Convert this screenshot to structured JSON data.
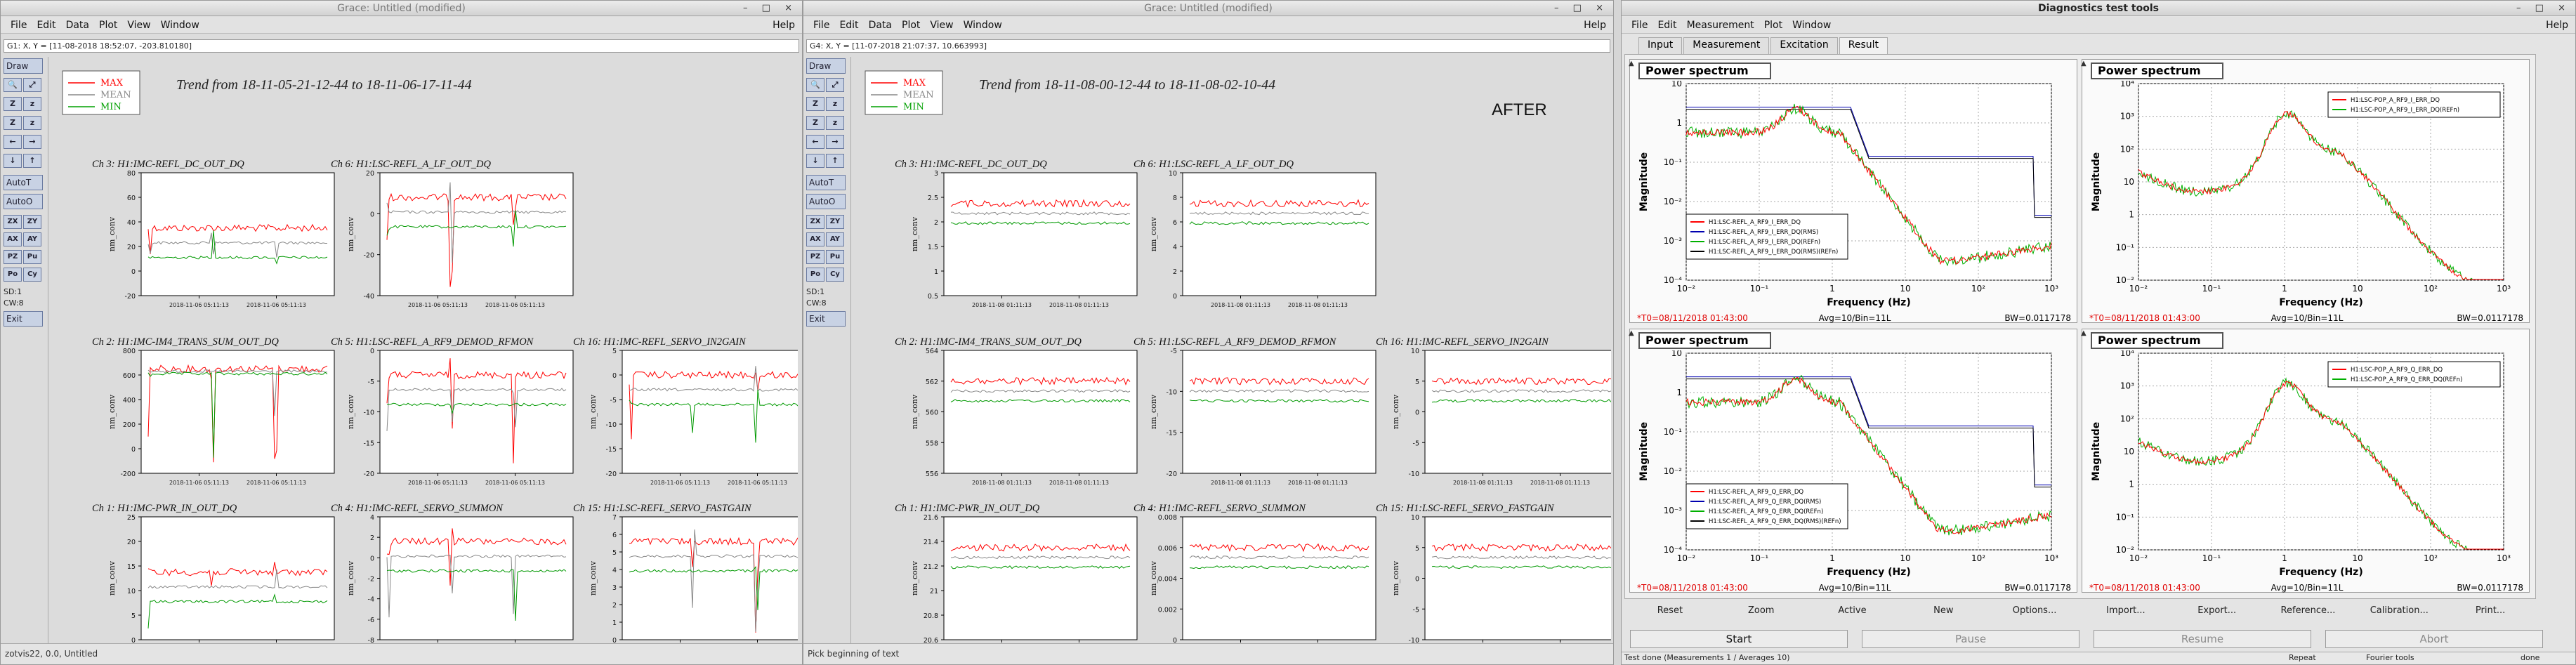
{
  "windows": [
    {
      "id": "grace1",
      "title": "Grace: Untitled (modified)",
      "menus": [
        "File",
        "Edit",
        "Data",
        "Plot",
        "View",
        "Window"
      ],
      "help": "Help",
      "locator": "G1: X, Y = [11-08-2018 18:52:07, -203.810180]",
      "trend_title": "Trend from 18-11-05-21-12-44 to 18-11-06-17-11-44",
      "legend": [
        "MAX",
        "MEAN",
        "MIN"
      ],
      "status": "zotvis22, 0.0, Untitled",
      "annotation": "",
      "xtick": "2018-11-06 05:11:13",
      "graphs": [
        {
          "title": "Ch 3: H1:IMC-REFL_DC_OUT_DQ",
          "ylabel": "nm_conv",
          "yticks": [
            "80",
            "60",
            "40",
            "20",
            "0",
            "-20"
          ]
        },
        {
          "title": "Ch 6: H1:LSC-REFL_A_LF_OUT_DQ",
          "ylabel": "nm_conv",
          "yticks": [
            "20",
            "0",
            "-20",
            "-40"
          ]
        },
        {
          "title": "",
          "ylabel": "",
          "yticks": []
        },
        {
          "title": "Ch 2: H1:IMC-IM4_TRANS_SUM_OUT_DQ",
          "ylabel": "nm_conv",
          "yticks": [
            "800",
            "600",
            "400",
            "200",
            "0",
            "-200"
          ]
        },
        {
          "title": "Ch 5: H1:LSC-REFL_A_RF9_DEMOD_RFMON",
          "ylabel": "nm_conv",
          "yticks": [
            "0",
            "-5",
            "-10",
            "-15",
            "-20"
          ]
        },
        {
          "title": "Ch 16: H1:IMC-REFL_SERVO_IN2GAIN",
          "ylabel": "nm_conv",
          "yticks": [
            "5",
            "0",
            "-5",
            "-10",
            "-15",
            "-20"
          ]
        },
        {
          "title": "Ch 1: H1:IMC-PWR_IN_OUT_DQ",
          "ylabel": "nm_conv",
          "yticks": [
            "25",
            "20",
            "15",
            "10",
            "5",
            "0"
          ]
        },
        {
          "title": "Ch 4: H1:IMC-REFL_SERVO_SUMMON",
          "ylabel": "nm_conv",
          "yticks": [
            "4",
            "2",
            "0",
            "-2",
            "-4",
            "-6",
            "-8"
          ]
        },
        {
          "title": "Ch 15: H1:LSC-REFL_SERVO_FASTGAIN",
          "ylabel": "nm_conv",
          "yticks": [
            "7",
            "6",
            "5",
            "4",
            "3",
            "2",
            "1",
            "0"
          ]
        }
      ]
    },
    {
      "id": "grace2",
      "title": "Grace: Untitled (modified)",
      "menus": [
        "File",
        "Edit",
        "Data",
        "Plot",
        "View",
        "Window"
      ],
      "help": "Help",
      "locator": "G4: X, Y = [11-07-2018 21:07:37, 10.663993]",
      "trend_title": "Trend from 18-11-08-00-12-44 to 18-11-08-02-10-44",
      "legend": [
        "MAX",
        "MEAN",
        "MIN"
      ],
      "status": "Pick beginning of text",
      "annotation": "AFTER",
      "xtick": "2018-11-08 01:11:13",
      "graphs": [
        {
          "title": "Ch 3: H1:IMC-REFL_DC_OUT_DQ",
          "ylabel": "nm_conv",
          "yticks": [
            "3",
            "2.5",
            "2",
            "1.5",
            "1",
            "0.5"
          ]
        },
        {
          "title": "Ch 6: H1:LSC-REFL_A_LF_OUT_DQ",
          "ylabel": "nm_conv",
          "yticks": [
            "10",
            "8",
            "6",
            "4",
            "2",
            "0"
          ]
        },
        {
          "title": "",
          "ylabel": "",
          "yticks": []
        },
        {
          "title": "Ch 2: H1:IMC-IM4_TRANS_SUM_OUT_DQ",
          "ylabel": "nm_conv",
          "yticks": [
            "564",
            "562",
            "560",
            "558",
            "556"
          ]
        },
        {
          "title": "Ch 5: H1:LSC-REFL_A_RF9_DEMOD_RFMON",
          "ylabel": "nm_conv",
          "yticks": [
            "-5",
            "-10",
            "-15",
            "-20"
          ]
        },
        {
          "title": "Ch 16: H1:IMC-REFL_SERVO_IN2GAIN",
          "ylabel": "nm_conv",
          "yticks": [
            "10",
            "5",
            "0",
            "-5",
            "-10"
          ]
        },
        {
          "title": "Ch 1: H1:IMC-PWR_IN_OUT_DQ",
          "ylabel": "nm_conv",
          "yticks": [
            "21.6",
            "21.4",
            "21.2",
            "21",
            "20.8",
            "20.6"
          ]
        },
        {
          "title": "Ch 4: H1:IMC-REFL_SERVO_SUMMON",
          "ylabel": "nm_conv",
          "yticks": [
            "0.008",
            "0.006",
            "0.004",
            "0.002",
            "0"
          ]
        },
        {
          "title": "Ch 15: H1:LSC-REFL_SERVO_FASTGAIN",
          "ylabel": "nm_conv",
          "yticks": [
            "10",
            "5",
            "0",
            "-5",
            "-10"
          ]
        }
      ]
    }
  ],
  "toolbox": {
    "draw": "Draw",
    "icons": [
      [
        "zoom-icon",
        "🔍"
      ],
      [
        "autoscale-icon",
        "⤢"
      ],
      [
        "zoom-x-icon",
        "Z"
      ],
      [
        "zoom-y-icon",
        "z"
      ],
      [
        "zoom-in-x-icon",
        "Z"
      ],
      [
        "zoom-out-y-icon",
        "z"
      ],
      [
        "scroll-left-icon",
        "←"
      ],
      [
        "scroll-right-icon",
        "→"
      ],
      [
        "scroll-down-icon",
        "↓"
      ],
      [
        "scroll-up-icon",
        "↑"
      ]
    ],
    "autot": "AutoT",
    "autoo": "AutoO",
    "small": [
      [
        "ZX",
        "ZY"
      ],
      [
        "AX",
        "AY"
      ],
      [
        "PZ",
        "Pu"
      ],
      [
        "Po",
        "Cy"
      ]
    ],
    "sd": "SD:1",
    "cw": "CW:8",
    "exit": "Exit"
  },
  "diag": {
    "title": "Diagnostics test tools",
    "menus": [
      "File",
      "Edit",
      "Measurement",
      "Plot",
      "Window"
    ],
    "help": "Help",
    "tabs": [
      "Input",
      "Measurement",
      "Excitation",
      "Result"
    ],
    "active_tab": "Result",
    "panels": [
      {
        "title": "Power spectrum",
        "legend": [
          "H1:LSC-REFL_A_RF9_I_ERR_DQ",
          "H1:LSC-REFL_A_RF9_I_ERR_DQ(RMS)",
          "H1:LSC-REFL_A_RF9_I_ERR_DQ(REFn)",
          "H1:LSC-REFL_A_RF9_I_ERR_DQ(RMS)(REFn)"
        ],
        "legend_colors": [
          "#ff0000",
          "#0000b0",
          "#00b000",
          "#000000"
        ],
        "xlabel": "Frequency (Hz)",
        "ylabel": "Magnitude",
        "t0": "*T0=08/11/2018 01:43:00",
        "avg": "Avg=10/Bin=11L",
        "bw": "BW=0.0117178",
        "yticks": [
          "10",
          "1",
          "10⁻¹",
          "10⁻²",
          "10⁻³",
          "10⁻⁴"
        ],
        "xticks": [
          "10⁻²",
          "10⁻¹",
          "1",
          "10",
          "10²",
          "10³"
        ]
      },
      {
        "title": "Power spectrum",
        "legend": [
          "H1:LSC-POP_A_RF9_I_ERR_DQ",
          "H1:LSC-POP_A_RF9_I_ERR_DQ(REFn)"
        ],
        "legend_colors": [
          "#ff0000",
          "#00b000"
        ],
        "xlabel": "Frequency (Hz)",
        "ylabel": "Magnitude",
        "t0": "*T0=08/11/2018 01:43:00",
        "avg": "Avg=10/Bin=11L",
        "bw": "BW=0.0117178",
        "yticks": [
          "10⁴",
          "10³",
          "10²",
          "10",
          "1",
          "10⁻¹",
          "10⁻²"
        ],
        "xticks": [
          "10⁻²",
          "10⁻¹",
          "1",
          "10",
          "10²",
          "10³"
        ]
      },
      {
        "title": "Power spectrum",
        "legend": [
          "H1:LSC-REFL_A_RF9_Q_ERR_DQ",
          "H1:LSC-REFL_A_RF9_Q_ERR_DQ(RMS)",
          "H1:LSC-REFL_A_RF9_Q_ERR_DQ(REFn)",
          "H1:LSC-REFL_A_RF9_Q_ERR_DQ(RMS)(REFn)"
        ],
        "legend_colors": [
          "#ff0000",
          "#0000b0",
          "#00b000",
          "#000000"
        ],
        "xlabel": "Frequency (Hz)",
        "ylabel": "Magnitude",
        "t0": "*T0=08/11/2018 01:43:00",
        "avg": "Avg=10/Bin=11L",
        "bw": "BW=0.0117178",
        "yticks": [
          "10",
          "1",
          "10⁻¹",
          "10⁻²",
          "10⁻³",
          "10⁻⁴"
        ],
        "xticks": [
          "10⁻²",
          "10⁻¹",
          "1",
          "10",
          "10²",
          "10³"
        ]
      },
      {
        "title": "Power spectrum",
        "legend": [
          "H1:LSC-POP_A_RF9_Q_ERR_DQ",
          "H1:LSC-POP_A_RF9_Q_ERR_DQ(REFn)"
        ],
        "legend_colors": [
          "#ff0000",
          "#00b000"
        ],
        "xlabel": "Frequency (Hz)",
        "ylabel": "Magnitude",
        "t0": "*T0=08/11/2018 01:43:00",
        "avg": "Avg=10/Bin=11L",
        "bw": "BW=0.0117178",
        "yticks": [
          "10⁴",
          "10³",
          "10²",
          "10",
          "1",
          "10⁻¹",
          "10⁻²"
        ],
        "xticks": [
          "10⁻²",
          "10⁻¹",
          "1",
          "10",
          "10²",
          "10³"
        ]
      }
    ],
    "bottom_buttons": [
      "Reset",
      "Zoom",
      "Active",
      "New",
      "Options...",
      "Import...",
      "Export...",
      "Reference...",
      "Calibration...",
      "Print..."
    ],
    "big_buttons": [
      "Start",
      "Pause",
      "Resume",
      "Abort"
    ],
    "status": [
      "Test done (Measurements 1 / Averages 10)",
      "Repeat",
      "Fourier tools",
      "done"
    ]
  }
}
